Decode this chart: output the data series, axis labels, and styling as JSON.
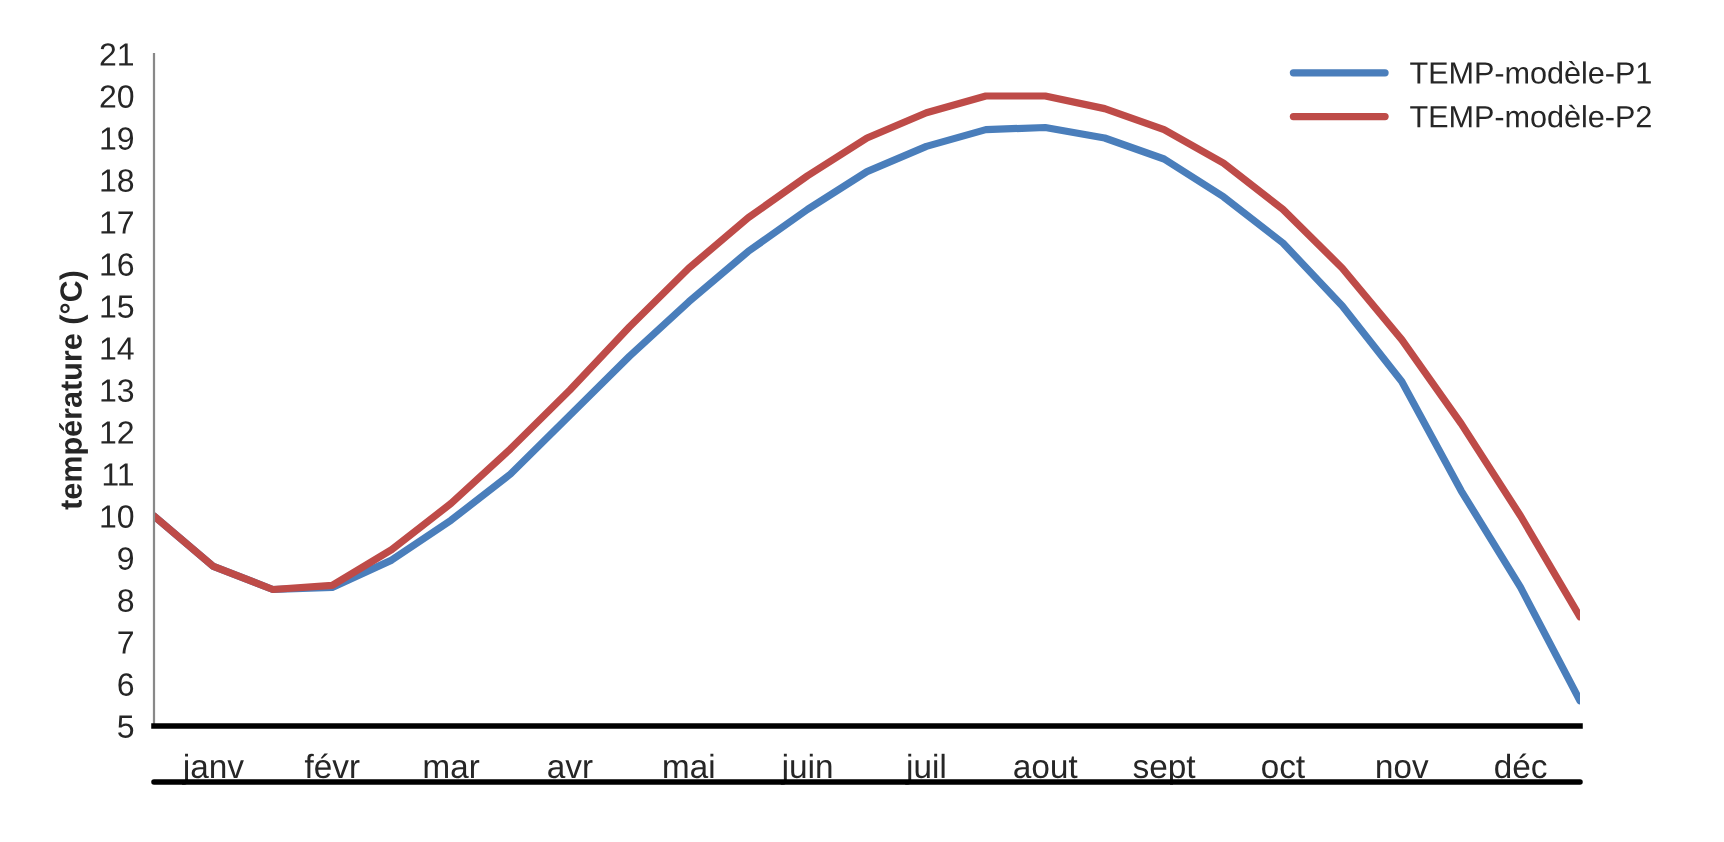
{
  "chart_data": {
    "type": "line",
    "ylabel": "température (°C)",
    "categories": [
      null,
      "janv",
      null,
      "févr",
      null,
      "mar",
      null,
      "avr",
      null,
      "mai",
      null,
      "juin",
      null,
      "juil",
      null,
      "aout",
      null,
      "sept",
      null,
      "oct",
      null,
      "nov",
      null,
      "déc",
      null
    ],
    "series": [
      {
        "name": "TEMP-modèle-P1",
        "color": "#4a7ebb",
        "values": [
          10,
          8.8,
          8.25,
          8.3,
          8.95,
          9.9,
          11.0,
          12.4,
          13.8,
          15.1,
          16.3,
          17.3,
          18.2,
          18.8,
          19.2,
          19.25,
          19.0,
          18.5,
          17.6,
          16.5,
          15.0,
          13.2,
          10.6,
          8.3,
          5.6
        ]
      },
      {
        "name": "TEMP-modèle-P2",
        "color": "#be4b48",
        "values": [
          10,
          8.8,
          8.25,
          8.35,
          9.2,
          10.3,
          11.6,
          13.0,
          14.5,
          15.9,
          17.1,
          18.1,
          19.0,
          19.6,
          20.0,
          20.0,
          19.7,
          19.2,
          18.4,
          17.3,
          15.9,
          14.2,
          12.2,
          10.0,
          7.6
        ]
      }
    ],
    "ylim": [
      5,
      21
    ],
    "yticks": [
      5,
      6,
      7,
      8,
      9,
      10,
      11,
      12,
      13,
      14,
      15,
      16,
      17,
      18,
      19,
      20,
      21
    ],
    "grid": false,
    "legend": "top right",
    "marker": "none",
    "line_style": "solid"
  }
}
